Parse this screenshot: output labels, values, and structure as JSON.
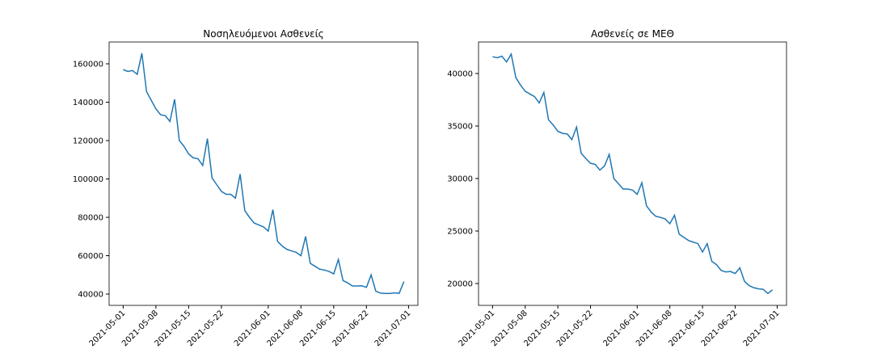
{
  "chart_data": [
    {
      "type": "line",
      "title": "Νοσηλευόμενοι Ασθενείς",
      "color": "#1f77b4",
      "x": [
        "2021-05-01",
        "2021-05-02",
        "2021-05-03",
        "2021-05-04",
        "2021-05-05",
        "2021-05-06",
        "2021-05-07",
        "2021-05-08",
        "2021-05-09",
        "2021-05-10",
        "2021-05-11",
        "2021-05-12",
        "2021-05-13",
        "2021-05-14",
        "2021-05-15",
        "2021-05-16",
        "2021-05-17",
        "2021-05-18",
        "2021-05-19",
        "2021-05-20",
        "2021-05-21",
        "2021-05-22",
        "2021-05-23",
        "2021-05-24",
        "2021-05-25",
        "2021-05-26",
        "2021-05-27",
        "2021-05-28",
        "2021-05-29",
        "2021-05-30",
        "2021-05-31",
        "2021-06-01",
        "2021-06-02",
        "2021-06-03",
        "2021-06-04",
        "2021-06-05",
        "2021-06-06",
        "2021-06-07",
        "2021-06-08",
        "2021-06-09",
        "2021-06-10",
        "2021-06-11",
        "2021-06-12",
        "2021-06-13",
        "2021-06-14",
        "2021-06-15",
        "2021-06-16",
        "2021-06-17",
        "2021-06-18",
        "2021-06-19",
        "2021-06-20",
        "2021-06-21",
        "2021-06-22",
        "2021-06-23",
        "2021-06-24",
        "2021-06-25",
        "2021-06-26",
        "2021-06-27",
        "2021-06-28",
        "2021-06-29",
        "2021-06-30"
      ],
      "values": [
        157000,
        156000,
        156500,
        154500,
        165500,
        145500,
        141000,
        136500,
        133500,
        133000,
        130000,
        141500,
        120000,
        117000,
        113000,
        111000,
        110500,
        107000,
        121000,
        100500,
        97000,
        93500,
        92000,
        92000,
        90000,
        102500,
        83500,
        80000,
        77000,
        76000,
        75000,
        72800,
        84000,
        67500,
        65000,
        63300,
        62500,
        61700,
        60000,
        70000,
        56000,
        54500,
        53000,
        52500,
        51800,
        50500,
        58000,
        47000,
        45800,
        44200,
        44200,
        44300,
        43500,
        50000,
        41500,
        40500,
        40300,
        40300,
        40600,
        40400,
        46500
      ],
      "xlim": [
        "2021-04-28",
        "2021-07-03"
      ],
      "xticks": [
        "2021-05-01",
        "2021-05-08",
        "2021-05-15",
        "2021-05-22",
        "2021-06-01",
        "2021-06-08",
        "2021-06-15",
        "2021-06-22",
        "2021-07-01"
      ],
      "ylim": [
        34100,
        171370
      ],
      "yticks": [
        40000,
        60000,
        80000,
        100000,
        120000,
        140000,
        160000
      ]
    },
    {
      "type": "line",
      "title": "Ασθενείς σε ΜΕΘ",
      "color": "#1f77b4",
      "x": [
        "2021-05-01",
        "2021-05-02",
        "2021-05-03",
        "2021-05-04",
        "2021-05-05",
        "2021-05-06",
        "2021-05-07",
        "2021-05-08",
        "2021-05-09",
        "2021-05-10",
        "2021-05-11",
        "2021-05-12",
        "2021-05-13",
        "2021-05-14",
        "2021-05-15",
        "2021-05-16",
        "2021-05-17",
        "2021-05-18",
        "2021-05-19",
        "2021-05-20",
        "2021-05-21",
        "2021-05-22",
        "2021-05-23",
        "2021-05-24",
        "2021-05-25",
        "2021-05-26",
        "2021-05-27",
        "2021-05-28",
        "2021-05-29",
        "2021-05-30",
        "2021-05-31",
        "2021-06-01",
        "2021-06-02",
        "2021-06-03",
        "2021-06-04",
        "2021-06-05",
        "2021-06-06",
        "2021-06-07",
        "2021-06-08",
        "2021-06-09",
        "2021-06-10",
        "2021-06-11",
        "2021-06-12",
        "2021-06-13",
        "2021-06-14",
        "2021-06-15",
        "2021-06-16",
        "2021-06-17",
        "2021-06-18",
        "2021-06-19",
        "2021-06-20",
        "2021-06-21",
        "2021-06-22",
        "2021-06-23",
        "2021-06-24",
        "2021-06-25",
        "2021-06-26",
        "2021-06-27",
        "2021-06-28",
        "2021-06-29",
        "2021-06-30"
      ],
      "values": [
        41600,
        41500,
        41650,
        41100,
        41850,
        39600,
        38900,
        38300,
        38050,
        37800,
        37200,
        38200,
        35600,
        35100,
        34500,
        34300,
        34250,
        33700,
        34900,
        32400,
        31900,
        31450,
        31350,
        30800,
        31200,
        32300,
        30000,
        29500,
        29000,
        29000,
        28900,
        28500,
        29600,
        27400,
        26800,
        26400,
        26300,
        26150,
        25700,
        26500,
        24700,
        24400,
        24100,
        23950,
        23800,
        23000,
        23800,
        22100,
        21800,
        21250,
        21100,
        21150,
        20950,
        21500,
        20200,
        19800,
        19600,
        19500,
        19450,
        19050,
        19400
      ],
      "xlim": [
        "2021-04-28",
        "2021-07-03"
      ],
      "xticks": [
        "2021-05-01",
        "2021-05-08",
        "2021-05-15",
        "2021-05-22",
        "2021-06-01",
        "2021-06-08",
        "2021-06-15",
        "2021-06-22",
        "2021-07-01"
      ],
      "ylim": [
        17920,
        43000
      ],
      "yticks": [
        20000,
        25000,
        30000,
        35000,
        40000
      ]
    }
  ]
}
